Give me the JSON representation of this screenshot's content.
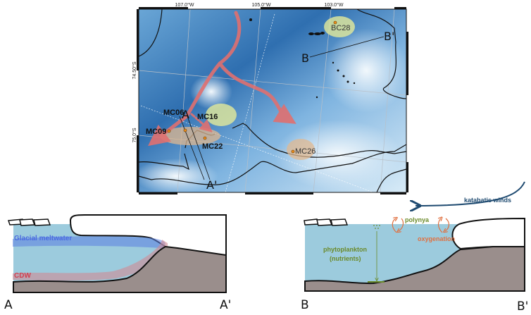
{
  "map": {
    "lon_ticks": [
      "107.0°W",
      "105.0°W",
      "103.0°W"
    ],
    "lat_ticks": [
      "74.50°S",
      "75.0°S"
    ],
    "sites": [
      "BC28",
      "MC06",
      "MC16",
      "MC09",
      "MC22",
      "MC26"
    ],
    "section_labels": {
      "a": "A",
      "a_prime": "A'",
      "b": "B",
      "b_prime": "B'"
    },
    "colors": {
      "flow_arrow": "#e07070",
      "green_zone": "#e3ea9a",
      "brown_zone": "#e0b890",
      "site_marker": "#f0901a"
    }
  },
  "section_a": {
    "meltwater_label": "Glacial meltwater",
    "cdw_label": "CDW",
    "start_label": "A",
    "end_label": "A'"
  },
  "section_b": {
    "winds_label": "katabatic winds",
    "polynya_label": "polynya",
    "oxygenation_label": "oxygenation",
    "phytoplankton_label": "phytoplankton",
    "nutrients_label": "(nutrients)",
    "start_label": "B",
    "end_label": "B'"
  },
  "colors": {
    "water": "#9ccbdd",
    "seabed": "#9a8e8c",
    "meltwater": "#5b7fe0",
    "cdw": "#d08a94",
    "winds": "#1e4a70",
    "oxygen": "#e07040",
    "phyto": "#6b8a2a"
  }
}
